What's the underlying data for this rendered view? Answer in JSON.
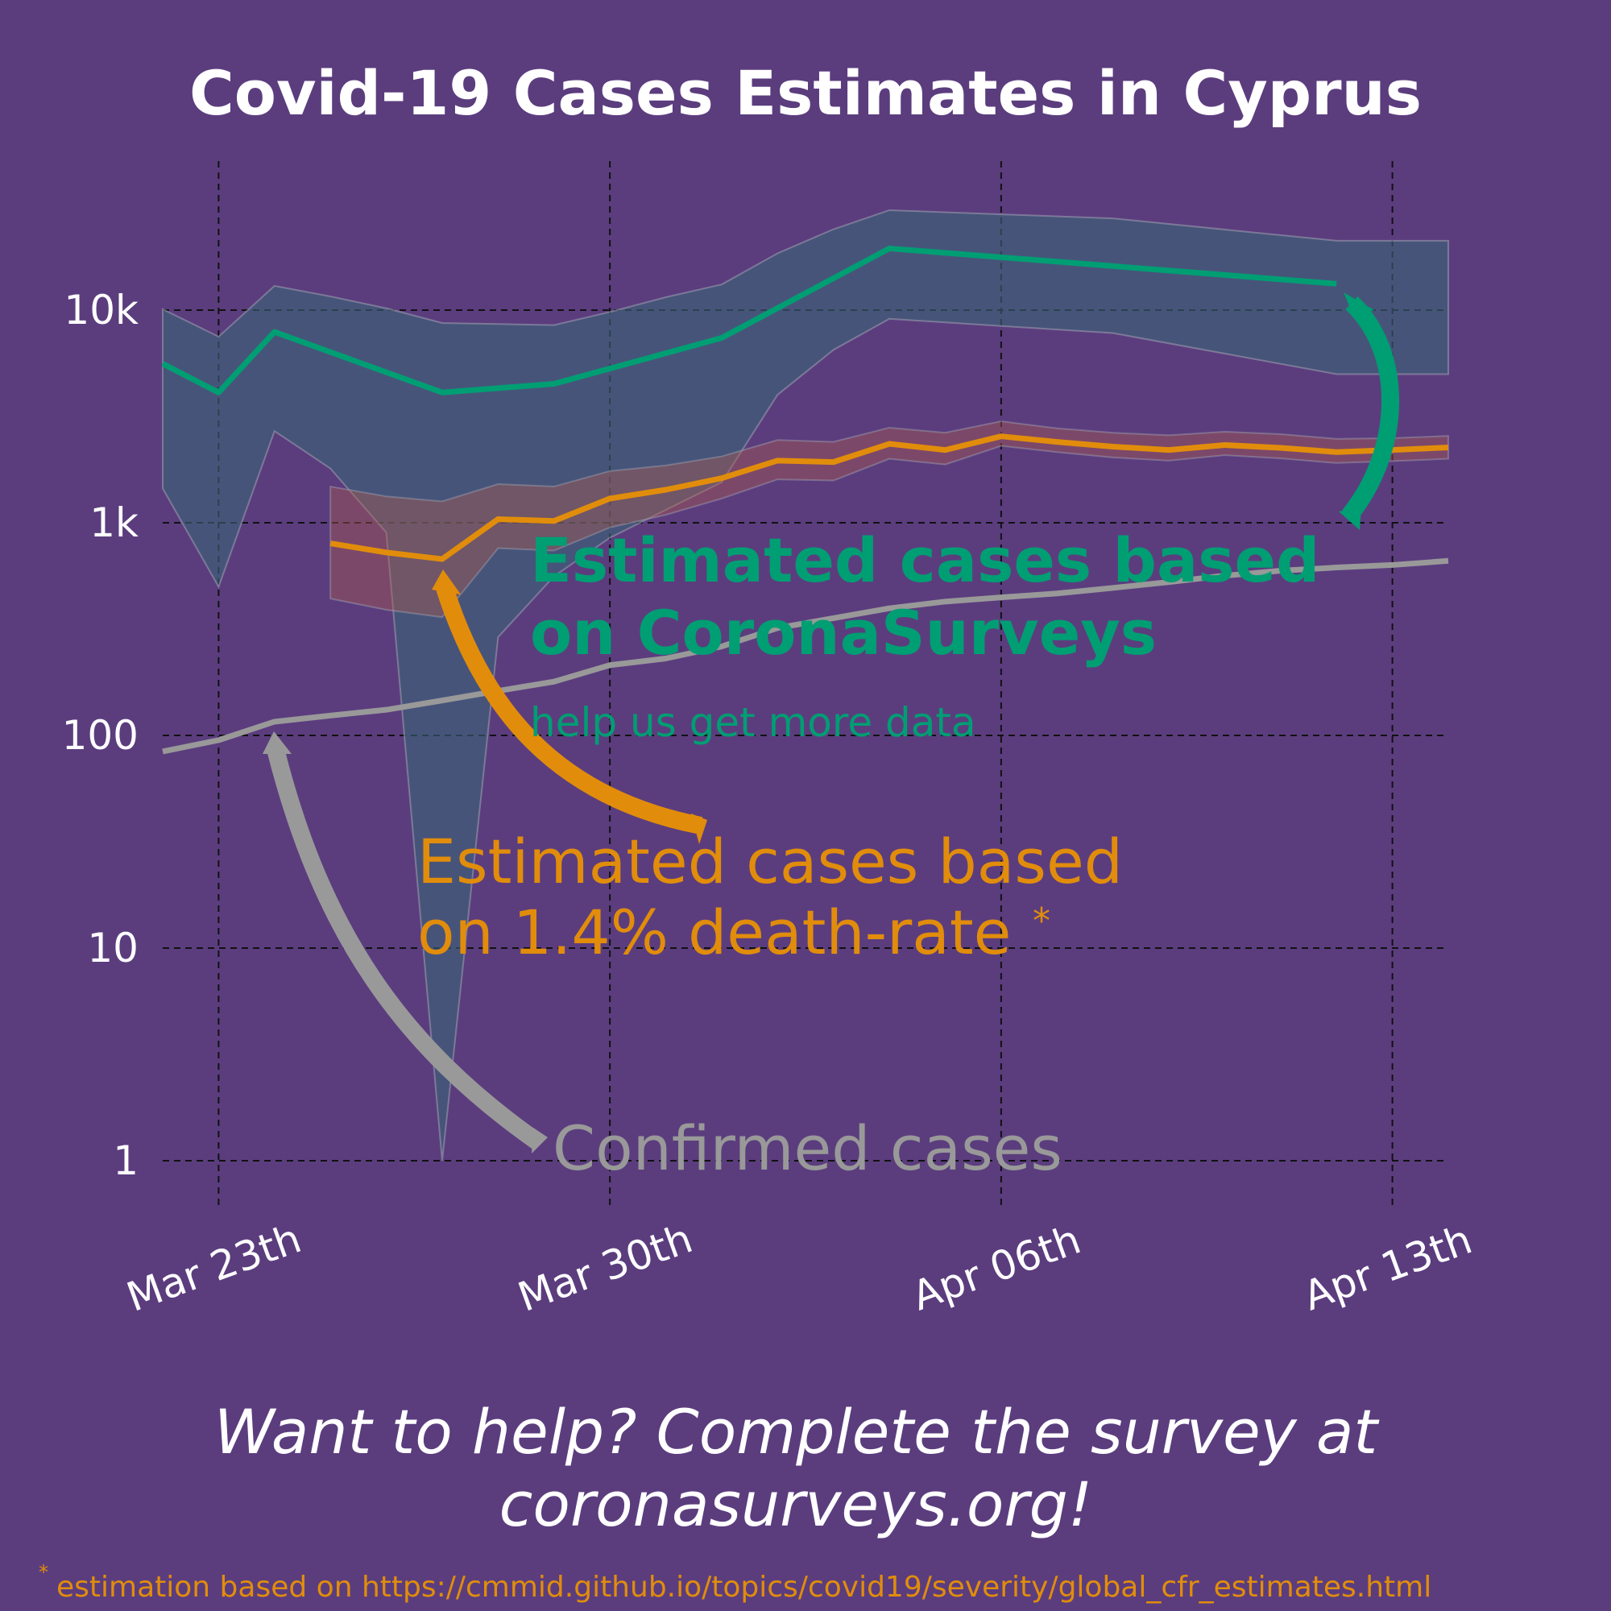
{
  "chart_data": {
    "type": "line",
    "title": "Covid-19 Cases Estimates in Cyprus",
    "yscale": "log",
    "ylim": [
      1,
      50000
    ],
    "yticks": [
      1,
      10,
      100,
      1000,
      10000
    ],
    "ytick_labels": [
      "1",
      "10",
      "100",
      "1k",
      "10k"
    ],
    "xlim": [
      "2020-03-22",
      "2020-04-14"
    ],
    "xticks": [
      "2020-03-23",
      "2020-03-30",
      "2020-04-06",
      "2020-04-13"
    ],
    "xtick_labels": [
      "Mar 23th",
      "Mar 30th",
      "Apr 06th",
      "Apr 13th"
    ],
    "grid": true,
    "series": [
      {
        "key": "coronasurveys",
        "color": "#009e73",
        "points": [
          [
            "2020-03-22",
            5600
          ],
          [
            "2020-03-23",
            4100
          ],
          [
            "2020-03-24",
            7900
          ],
          [
            "2020-03-27",
            4100
          ],
          [
            "2020-03-29",
            4500
          ],
          [
            "2020-04-01",
            7400
          ],
          [
            "2020-04-04",
            19500
          ],
          [
            "2020-04-12",
            13300
          ]
        ],
        "band": [
          [
            "2020-03-22",
            10100,
            1450
          ],
          [
            "2020-03-23",
            7500,
            500
          ],
          [
            "2020-03-24",
            13000,
            2700
          ],
          [
            "2020-03-25",
            11600,
            1800
          ],
          [
            "2020-03-26",
            10200,
            900
          ],
          [
            "2020-03-27",
            8700,
            1.0
          ],
          [
            "2020-03-28",
            8600,
            290
          ],
          [
            "2020-03-29",
            8500,
            560
          ],
          [
            "2020-03-30",
            9800,
            850
          ],
          [
            "2020-03-31",
            11500,
            1150
          ],
          [
            "2020-04-01",
            13200,
            1550
          ],
          [
            "2020-04-02",
            18500,
            4000
          ],
          [
            "2020-04-03",
            24000,
            6500
          ],
          [
            "2020-04-04",
            29500,
            9100
          ],
          [
            "2020-04-08",
            27000,
            7800
          ],
          [
            "2020-04-12",
            21200,
            5000
          ],
          [
            "2020-04-14",
            21200,
            5000
          ]
        ]
      },
      {
        "key": "death_rate",
        "color": "#e18d0b",
        "points": [
          [
            "2020-03-25",
            800
          ],
          [
            "2020-03-26",
            725
          ],
          [
            "2020-03-27",
            675
          ],
          [
            "2020-03-28",
            1040
          ],
          [
            "2020-03-29",
            1020
          ],
          [
            "2020-03-30",
            1300
          ],
          [
            "2020-03-31",
            1430
          ],
          [
            "2020-04-01",
            1620
          ],
          [
            "2020-04-02",
            1960
          ],
          [
            "2020-04-03",
            1930
          ],
          [
            "2020-04-04",
            2350
          ],
          [
            "2020-04-05",
            2200
          ],
          [
            "2020-04-06",
            2550
          ],
          [
            "2020-04-07",
            2400
          ],
          [
            "2020-04-08",
            2280
          ],
          [
            "2020-04-09",
            2200
          ],
          [
            "2020-04-10",
            2320
          ],
          [
            "2020-04-11",
            2250
          ],
          [
            "2020-04-12",
            2150
          ],
          [
            "2020-04-13",
            2200
          ],
          [
            "2020-04-14",
            2260
          ]
        ],
        "band": [
          [
            "2020-03-25",
            1480,
            440
          ],
          [
            "2020-03-26",
            1330,
            390
          ],
          [
            "2020-03-27",
            1260,
            360
          ],
          [
            "2020-03-28",
            1520,
            760
          ],
          [
            "2020-03-29",
            1480,
            740
          ],
          [
            "2020-03-30",
            1750,
            950
          ],
          [
            "2020-03-31",
            1860,
            1090
          ],
          [
            "2020-04-01",
            2050,
            1300
          ],
          [
            "2020-04-02",
            2450,
            1600
          ],
          [
            "2020-04-03",
            2400,
            1580
          ],
          [
            "2020-04-04",
            2800,
            2000
          ],
          [
            "2020-04-05",
            2650,
            1880
          ],
          [
            "2020-04-06",
            3000,
            2300
          ],
          [
            "2020-04-07",
            2780,
            2150
          ],
          [
            "2020-04-08",
            2650,
            2030
          ],
          [
            "2020-04-09",
            2580,
            1960
          ],
          [
            "2020-04-10",
            2680,
            2080
          ],
          [
            "2020-04-11",
            2610,
            2010
          ],
          [
            "2020-04-12",
            2480,
            1910
          ],
          [
            "2020-04-13",
            2500,
            1950
          ],
          [
            "2020-04-14",
            2560,
            2000
          ]
        ]
      },
      {
        "key": "confirmed",
        "color": "#999999",
        "points": [
          [
            "2020-03-22",
            84
          ],
          [
            "2020-03-23",
            95
          ],
          [
            "2020-03-24",
            116
          ],
          [
            "2020-03-25",
            124
          ],
          [
            "2020-03-26",
            132
          ],
          [
            "2020-03-27",
            146
          ],
          [
            "2020-03-28",
            162
          ],
          [
            "2020-03-29",
            179
          ],
          [
            "2020-03-30",
            214
          ],
          [
            "2020-03-31",
            230
          ],
          [
            "2020-04-01",
            262
          ],
          [
            "2020-04-02",
            320
          ],
          [
            "2020-04-03",
            356
          ],
          [
            "2020-04-04",
            396
          ],
          [
            "2020-04-05",
            426
          ],
          [
            "2020-04-06",
            446
          ],
          [
            "2020-04-07",
            465
          ],
          [
            "2020-04-08",
            494
          ],
          [
            "2020-04-09",
            526
          ],
          [
            "2020-04-10",
            564
          ],
          [
            "2020-04-11",
            595
          ],
          [
            "2020-04-12",
            616
          ],
          [
            "2020-04-13",
            633
          ],
          [
            "2020-04-14",
            662
          ]
        ]
      }
    ],
    "annotations": {
      "green_line1": "Estimated cases based",
      "green_line2": "on CoronaSurveys",
      "green_sub": "help us get more data",
      "orange_line1": "Estimated cases based",
      "orange_line2": "on 1.4% death-rate",
      "orange_star": "*",
      "gray": "Confirmed cases"
    }
  },
  "cta_line1": "Want to help? Complete the survey at",
  "cta_line2": "coronasurveys.org!",
  "footnote_star": "*",
  "footnote_text": "estimation based on https://cmmid.github.io/topics/covid19/severity/global_cfr_estimates.html"
}
